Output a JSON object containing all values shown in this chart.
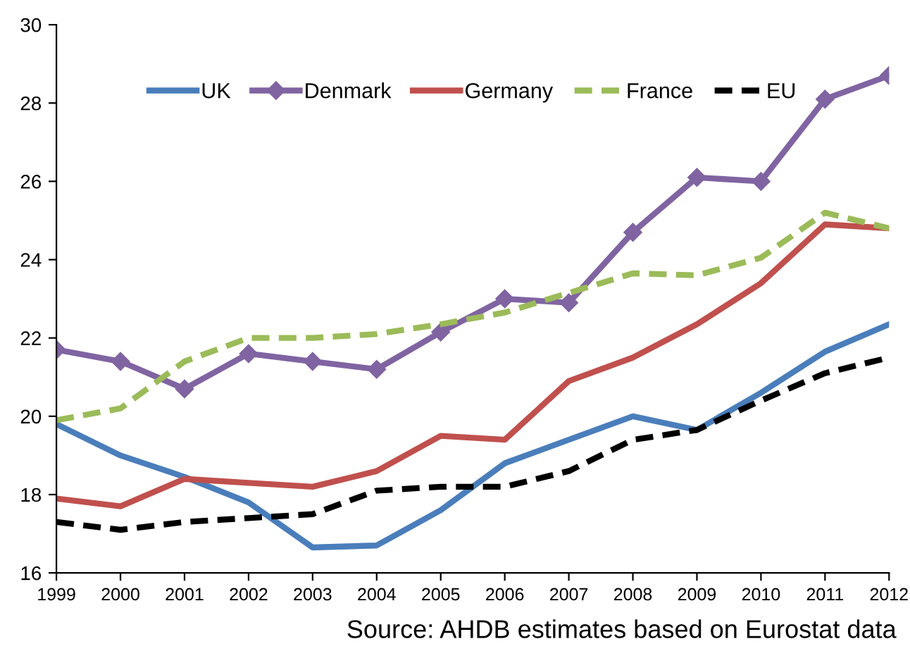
{
  "chart_data": {
    "type": "line",
    "categories": [
      "1999",
      "2000",
      "2001",
      "2002",
      "2003",
      "2004",
      "2005",
      "2006",
      "2007",
      "2008",
      "2009",
      "2010",
      "2011",
      "2012"
    ],
    "ylim": [
      16,
      30
    ],
    "yticks": [
      16,
      18,
      20,
      22,
      24,
      26,
      28,
      30
    ],
    "grid": false,
    "legend": "top",
    "line_style": "solid",
    "marker": "none",
    "series": [
      {
        "name": "UK",
        "color": "#4a7ebb",
        "values": [
          19.8,
          19.0,
          18.45,
          17.8,
          16.65,
          16.7,
          17.6,
          18.8,
          19.4,
          20.0,
          19.65,
          20.6,
          21.65,
          22.35
        ]
      },
      {
        "name": "Denmark",
        "color": "#8064a2",
        "marker": "diamond",
        "values": [
          21.7,
          21.4,
          20.7,
          21.6,
          21.4,
          21.2,
          22.15,
          23.0,
          22.9,
          24.7,
          26.1,
          26.0,
          28.1,
          28.7
        ]
      },
      {
        "name": "Germany",
        "color": "#c0504d",
        "line_style": "solid",
        "values": [
          17.9,
          17.7,
          18.4,
          18.3,
          18.2,
          18.6,
          19.5,
          19.4,
          20.9,
          21.5,
          22.35,
          23.4,
          24.9,
          24.8
        ]
      },
      {
        "name": "France",
        "color": "#9bbb59",
        "line_style": "dashed",
        "values": [
          19.9,
          20.2,
          21.4,
          22.0,
          22.0,
          22.1,
          22.35,
          22.65,
          23.15,
          23.65,
          23.6,
          24.05,
          25.2,
          24.8
        ]
      },
      {
        "name": "EU",
        "color": "#000000",
        "line_style": "dashed",
        "values": [
          17.3,
          17.1,
          17.3,
          17.4,
          17.5,
          18.1,
          18.2,
          18.2,
          18.6,
          19.4,
          19.65,
          20.4,
          21.1,
          21.5
        ]
      }
    ],
    "annotations": [
      "Source: AHDB estimates based on Eurostat data"
    ]
  }
}
